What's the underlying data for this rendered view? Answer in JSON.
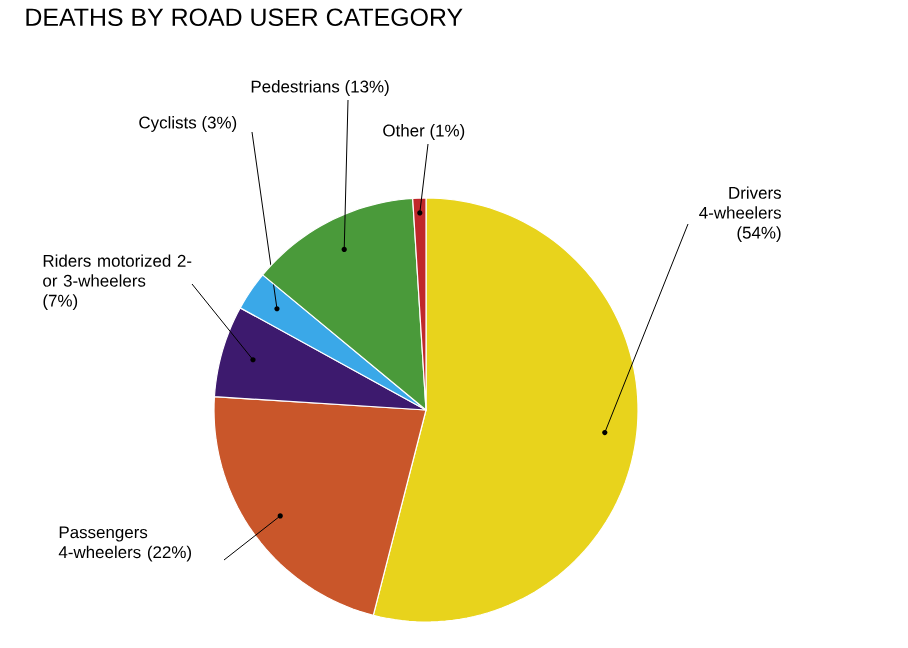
{
  "chart_data": {
    "type": "pie",
    "title": "DEATHS BY ROAD USER CATEGORY",
    "categories": [
      "Drivers 4-wheelers",
      "Passengers 4-wheelers",
      "Riders motorized 2- or 3-wheelers",
      "Cyclists",
      "Pedestrians",
      "Other"
    ],
    "values": [
      54,
      22,
      7,
      3,
      13,
      1
    ],
    "value_labels": [
      "(54%)",
      "(22%)",
      "(7%)",
      "(3%)",
      "(13%)",
      "(1%)"
    ],
    "colors": [
      "#e8d31c",
      "#c9562a",
      "#3d1a6e",
      "#3aa8e8",
      "#4a9a3a",
      "#c0282a"
    ]
  }
}
